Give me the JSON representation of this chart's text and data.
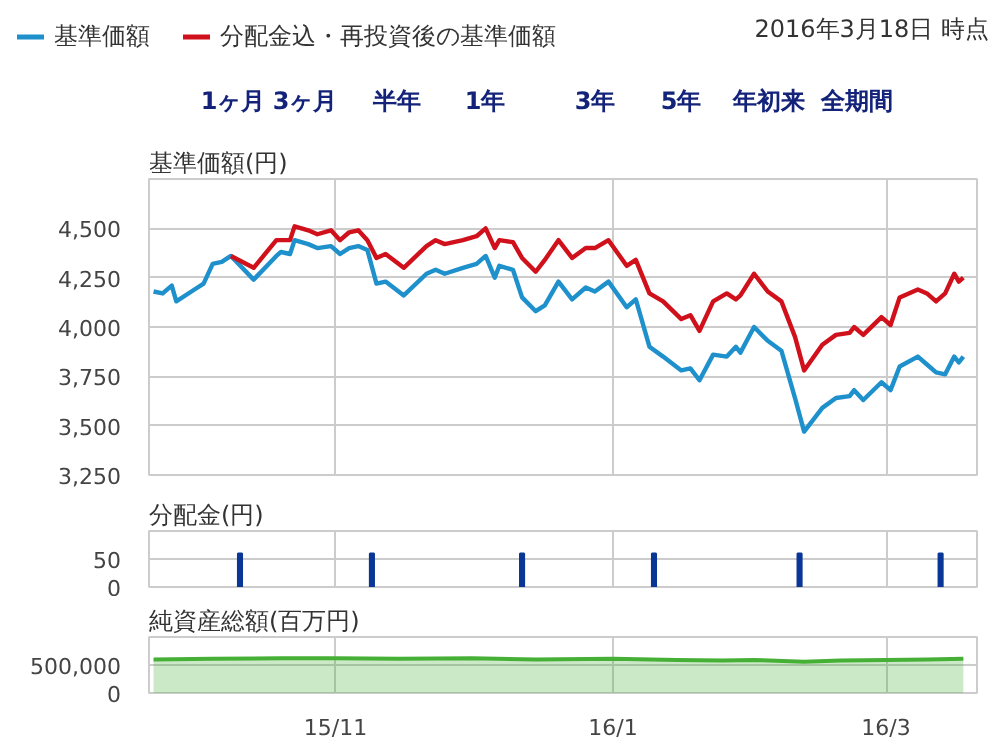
{
  "chart_data": [
    {
      "type": "line",
      "ylabel": "基準価額(円)",
      "legend": "top left",
      "grid": true,
      "tick_labels": "y",
      "line_style": "solid",
      "marker": "none",
      "annotations": [
        "2016年3月18日 時点",
        "1ヶ月",
        "3ヶ月",
        "半年",
        "1年",
        "3年",
        "5年",
        "年初来",
        "全期間"
      ],
      "xlim": [
        "2015-09-21",
        "2016-03-21"
      ],
      "xticks": [
        {
          "value": "2015-11-01",
          "label": null
        },
        {
          "value": "2016-01-01",
          "label": null
        },
        {
          "value": "2016-03-01",
          "label": null
        }
      ],
      "ylim": [
        3250,
        4750
      ],
      "yticks": [
        {
          "value": 3250,
          "label": "3,250"
        },
        {
          "value": 3500,
          "label": "3,500"
        },
        {
          "value": 3750,
          "label": "3,750"
        },
        {
          "value": 4000,
          "label": "4,000"
        },
        {
          "value": 4250,
          "label": "4,250"
        },
        {
          "value": 4500,
          "label": "4,500"
        },
        {
          "value": 4750,
          "label": null
        }
      ],
      "x": [
        "2015-09-22",
        "2015-09-24",
        "2015-09-26",
        "2015-09-27",
        "2015-10-01",
        "2015-10-03",
        "2015-10-05",
        "2015-10-07",
        "2015-10-09",
        "2015-10-14",
        "2015-10-19",
        "2015-10-20",
        "2015-10-22",
        "2015-10-23",
        "2015-10-26",
        "2015-10-28",
        "2015-10-31",
        "2015-11-02",
        "2015-11-04",
        "2015-11-06",
        "2015-11-08",
        "2015-11-10",
        "2015-11-12",
        "2015-11-16",
        "2015-11-21",
        "2015-11-23",
        "2015-11-25",
        "2015-11-29",
        "2015-12-02",
        "2015-12-04",
        "2015-12-06",
        "2015-12-07",
        "2015-12-10",
        "2015-12-12",
        "2015-12-15",
        "2015-12-17",
        "2015-12-20",
        "2015-12-23",
        "2015-12-26",
        "2015-12-28",
        "2015-12-31",
        "2016-01-04",
        "2016-01-06",
        "2016-01-09",
        "2016-01-12",
        "2016-01-16",
        "2016-01-18",
        "2016-01-20",
        "2016-01-23",
        "2016-01-26",
        "2016-01-28",
        "2016-01-29",
        "2016-02-01",
        "2016-02-04",
        "2016-02-07",
        "2016-02-10",
        "2016-02-12",
        "2016-02-16",
        "2016-02-19",
        "2016-02-22",
        "2016-02-23",
        "2016-02-25",
        "2016-02-29",
        "2016-03-02",
        "2016-03-04",
        "2016-03-08",
        "2016-03-10",
        "2016-03-12",
        "2016-03-14",
        "2016-03-16",
        "2016-03-17",
        "2016-03-18"
      ],
      "series": [
        {
          "name": "基準価額",
          "color": "#1e90cc",
          "values": [
            4180,
            4170,
            4210,
            4130,
            4190,
            4220,
            4320,
            4330,
            4360,
            4240,
            4360,
            4380,
            4370,
            4440,
            4420,
            4400,
            4410,
            4370,
            4400,
            4410,
            4390,
            4220,
            4230,
            4160,
            4270,
            4290,
            4270,
            4300,
            4320,
            4360,
            4250,
            4310,
            4290,
            4150,
            4080,
            4110,
            4230,
            4140,
            4200,
            4180,
            4230,
            4100,
            4140,
            3900,
            3850,
            3780,
            3790,
            3730,
            3860,
            3850,
            3900,
            3870,
            4000,
            3930,
            3880,
            3640,
            3470,
            3590,
            3640,
            3650,
            3680,
            3630,
            3720,
            3680,
            3800,
            3850,
            3810,
            3770,
            3760,
            3850,
            3820,
            3850
          ]
        },
        {
          "name": "分配金込・再投資後の基準価額",
          "color": "#d0101b",
          "values": [
            null,
            null,
            null,
            null,
            null,
            null,
            null,
            null,
            4360,
            4300,
            4440,
            4440,
            4440,
            4510,
            4490,
            4470,
            4490,
            4440,
            4480,
            4490,
            4440,
            4350,
            4370,
            4300,
            4410,
            4440,
            4420,
            4440,
            4460,
            4500,
            4400,
            4440,
            4430,
            4350,
            4280,
            4340,
            4440,
            4350,
            4400,
            4400,
            4440,
            4310,
            4340,
            4170,
            4130,
            4040,
            4060,
            3980,
            4130,
            4170,
            4140,
            4160,
            4270,
            4180,
            4130,
            3950,
            3780,
            3910,
            3960,
            3970,
            4000,
            3960,
            4050,
            4010,
            4150,
            4190,
            4170,
            4130,
            4170,
            4270,
            4230,
            4250
          ]
        }
      ]
    },
    {
      "type": "bar",
      "ylabel": "分配金(円)",
      "grid": true,
      "tick_labels": "y",
      "xlim": [
        "2015-09-21",
        "2016-03-21"
      ],
      "xticks": [
        {
          "value": "2015-11-01",
          "label": null
        },
        {
          "value": "2016-01-01",
          "label": null
        },
        {
          "value": "2016-03-01",
          "label": null
        }
      ],
      "ylim": [
        0,
        100
      ],
      "yticks": [
        0,
        50
      ],
      "x": [
        "2015-10-11",
        "2015-11-09",
        "2015-12-12",
        "2016-01-10",
        "2016-02-11",
        "2016-03-13"
      ],
      "series": [
        {
          "color": "#0a3696",
          "values": [
            60,
            60,
            60,
            60,
            60,
            60
          ]
        }
      ]
    },
    {
      "type": "area",
      "ylabel": "純資産総額(百万円)",
      "grid": true,
      "xlim": [
        "2015-09-21",
        "2016-03-21"
      ],
      "xticks": [
        {
          "value": "2015-11-01",
          "label": "15/11"
        },
        {
          "value": "2016-01-01",
          "label": "16/1"
        },
        {
          "value": "2016-03-01",
          "label": "16/3"
        }
      ],
      "ylim": [
        0,
        1000000
      ],
      "yticks": [
        0,
        {
          "value": 500000,
          "label": "500,000"
        }
      ],
      "x": [
        "2015-09-22",
        "2015-10-05",
        "2015-10-20",
        "2015-11-01",
        "2015-11-15",
        "2015-12-01",
        "2015-12-15",
        "2016-01-01",
        "2016-01-15",
        "2016-01-25",
        "2016-02-01",
        "2016-02-12",
        "2016-02-20",
        "2016-03-01",
        "2016-03-10",
        "2016-03-18"
      ],
      "series": [
        {
          "color": "#45b035",
          "values": [
            600000,
            610000,
            620000,
            620000,
            610000,
            620000,
            600000,
            610000,
            590000,
            580000,
            590000,
            560000,
            580000,
            590000,
            600000,
            610000
          ]
        }
      ]
    }
  ]
}
